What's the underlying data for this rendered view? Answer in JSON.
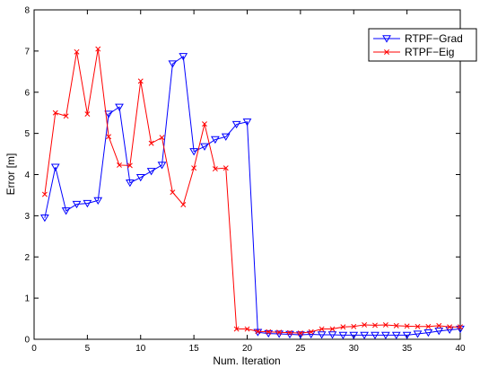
{
  "chart_data": {
    "type": "line",
    "title": "",
    "xlabel": "Num. Iteration",
    "ylabel": "Error [m]",
    "xlim": [
      0,
      40
    ],
    "ylim": [
      0,
      8
    ],
    "xticks": [
      0,
      5,
      10,
      15,
      20,
      25,
      30,
      35,
      40
    ],
    "yticks": [
      0,
      1,
      2,
      3,
      4,
      5,
      6,
      7,
      8
    ],
    "grid": false,
    "legend_position": "top-right",
    "x": [
      1,
      2,
      3,
      4,
      5,
      6,
      7,
      8,
      9,
      10,
      11,
      12,
      13,
      14,
      15,
      16,
      17,
      18,
      19,
      20,
      21,
      22,
      23,
      24,
      25,
      26,
      27,
      28,
      29,
      30,
      31,
      32,
      33,
      34,
      35,
      36,
      37,
      38,
      39,
      40
    ],
    "series": [
      {
        "name": "RTPF−Grad",
        "color": "#0000ff",
        "marker": "triangle-down",
        "values": [
          2.95,
          4.18,
          3.12,
          3.28,
          3.3,
          3.37,
          5.47,
          5.64,
          3.8,
          3.93,
          4.08,
          4.23,
          6.69,
          6.87,
          4.56,
          4.68,
          4.85,
          4.92,
          5.22,
          5.28,
          0.17,
          0.14,
          0.13,
          0.12,
          0.11,
          0.12,
          0.11,
          0.11,
          0.1,
          0.1,
          0.1,
          0.1,
          0.1,
          0.1,
          0.1,
          0.13,
          0.16,
          0.2,
          0.23,
          0.25
        ]
      },
      {
        "name": "RTPF−Eig",
        "color": "#ff0000",
        "marker": "x",
        "values": [
          3.52,
          5.5,
          5.42,
          6.98,
          5.47,
          7.05,
          4.92,
          4.23,
          4.22,
          6.27,
          4.76,
          4.9,
          3.57,
          3.27,
          4.16,
          5.23,
          4.14,
          4.16,
          0.25,
          0.25,
          0.19,
          0.18,
          0.17,
          0.16,
          0.15,
          0.18,
          0.25,
          0.25,
          0.3,
          0.31,
          0.35,
          0.34,
          0.35,
          0.33,
          0.32,
          0.31,
          0.31,
          0.33,
          0.3,
          0.3
        ]
      }
    ]
  }
}
